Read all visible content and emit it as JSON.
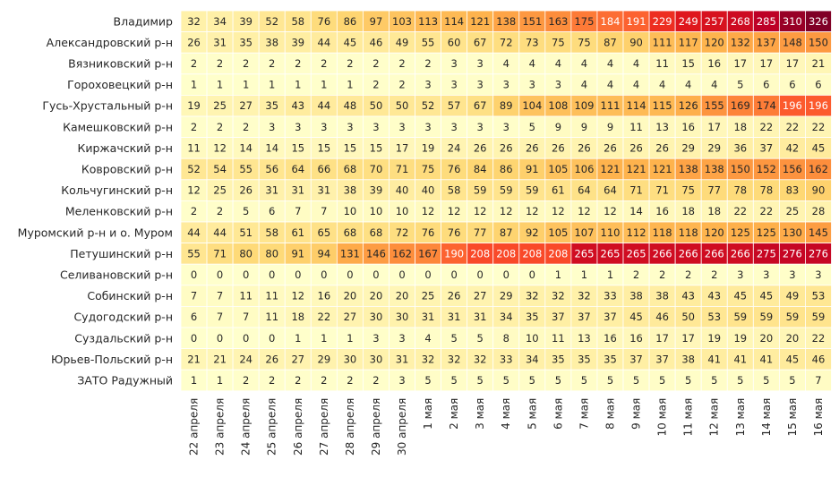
{
  "chart_data": {
    "type": "heatmap",
    "title": "",
    "xlabel": "",
    "ylabel": "",
    "colormap": "YlOrRd",
    "value_range": [
      0,
      326
    ],
    "x": [
      "22 апреля",
      "23 апреля",
      "24 апреля",
      "25 апреля",
      "26 апреля",
      "27 апреля",
      "28 апреля",
      "29 апреля",
      "30 апреля",
      "1 мая",
      "2 мая",
      "3 мая",
      "4 мая",
      "5 мая",
      "6 мая",
      "7 мая",
      "8 мая",
      "9 мая",
      "10 мая",
      "11 мая",
      "12 мая",
      "13 мая",
      "14 мая",
      "15 мая",
      "16 мая"
    ],
    "y": [
      "Владимир",
      "Александровский р-н",
      "Вязниковский р-н",
      "Гороховецкий р-н",
      "Гусь-Хрустальный р-н",
      "Камешковский р-н",
      "Киржачский р-н",
      "Ковровский р-н",
      "Кольчугинский р-н",
      "Меленковский р-н",
      "Муромский р-н и о. Муром",
      "Петушинский р-н",
      "Селивановский р-н",
      "Собинский р-н",
      "Судогодский р-н",
      "Суздальский р-н",
      "Юрьев-Польский р-н",
      "ЗАТО Радужный"
    ],
    "values": [
      [
        32,
        34,
        39,
        52,
        58,
        76,
        86,
        97,
        103,
        113,
        114,
        121,
        138,
        151,
        163,
        175,
        184,
        191,
        229,
        249,
        257,
        268,
        285,
        310,
        326
      ],
      [
        26,
        31,
        35,
        38,
        39,
        44,
        45,
        46,
        49,
        55,
        60,
        67,
        72,
        73,
        75,
        75,
        87,
        90,
        111,
        117,
        120,
        132,
        137,
        148,
        150
      ],
      [
        2,
        2,
        2,
        2,
        2,
        2,
        2,
        2,
        2,
        2,
        3,
        3,
        4,
        4,
        4,
        4,
        4,
        4,
        11,
        15,
        16,
        17,
        17,
        17,
        21
      ],
      [
        1,
        1,
        1,
        1,
        1,
        1,
        1,
        2,
        2,
        3,
        3,
        3,
        3,
        3,
        3,
        4,
        4,
        4,
        4,
        4,
        4,
        5,
        6,
        6,
        6
      ],
      [
        19,
        25,
        27,
        35,
        43,
        44,
        48,
        50,
        50,
        52,
        57,
        67,
        89,
        104,
        108,
        109,
        111,
        114,
        115,
        126,
        155,
        169,
        174,
        196,
        196
      ],
      [
        2,
        2,
        2,
        3,
        3,
        3,
        3,
        3,
        3,
        3,
        3,
        3,
        3,
        5,
        9,
        9,
        9,
        11,
        13,
        16,
        17,
        18,
        22,
        22,
        22
      ],
      [
        11,
        12,
        14,
        14,
        15,
        15,
        15,
        15,
        17,
        19,
        24,
        26,
        26,
        26,
        26,
        26,
        26,
        26,
        26,
        29,
        29,
        36,
        37,
        42,
        45
      ],
      [
        52,
        54,
        55,
        56,
        64,
        66,
        68,
        70,
        71,
        75,
        76,
        84,
        86,
        91,
        105,
        106,
        121,
        121,
        121,
        138,
        138,
        150,
        152,
        156,
        162
      ],
      [
        12,
        25,
        26,
        31,
        31,
        31,
        38,
        39,
        40,
        40,
        58,
        59,
        59,
        59,
        61,
        64,
        64,
        71,
        71,
        75,
        77,
        78,
        78,
        83,
        90
      ],
      [
        2,
        2,
        5,
        6,
        7,
        7,
        10,
        10,
        10,
        12,
        12,
        12,
        12,
        12,
        12,
        12,
        12,
        14,
        16,
        18,
        18,
        22,
        22,
        25,
        28
      ],
      [
        44,
        44,
        51,
        58,
        61,
        65,
        68,
        68,
        72,
        76,
        76,
        77,
        87,
        92,
        105,
        107,
        110,
        112,
        118,
        118,
        120,
        125,
        125,
        130,
        145
      ],
      [
        55,
        71,
        80,
        80,
        91,
        94,
        131,
        146,
        162,
        167,
        190,
        208,
        208,
        208,
        208,
        265,
        265,
        265,
        266,
        266,
        266,
        266,
        275,
        276,
        276
      ],
      [
        0,
        0,
        0,
        0,
        0,
        0,
        0,
        0,
        0,
        0,
        0,
        0,
        0,
        0,
        1,
        1,
        1,
        2,
        2,
        2,
        2,
        3,
        3,
        3,
        3
      ],
      [
        7,
        7,
        11,
        11,
        12,
        16,
        20,
        20,
        20,
        25,
        26,
        27,
        29,
        32,
        32,
        32,
        33,
        38,
        38,
        43,
        43,
        45,
        45,
        49,
        53
      ],
      [
        6,
        7,
        7,
        11,
        18,
        22,
        27,
        30,
        30,
        31,
        31,
        31,
        34,
        35,
        37,
        37,
        37,
        45,
        46,
        50,
        53,
        59,
        59,
        59,
        59
      ],
      [
        0,
        0,
        0,
        0,
        1,
        1,
        1,
        3,
        3,
        4,
        5,
        5,
        8,
        10,
        11,
        13,
        16,
        16,
        17,
        17,
        19,
        19,
        20,
        20,
        22
      ],
      [
        21,
        21,
        24,
        26,
        27,
        29,
        30,
        30,
        31,
        32,
        32,
        32,
        33,
        34,
        35,
        35,
        35,
        37,
        37,
        38,
        41,
        41,
        41,
        45,
        46
      ],
      [
        1,
        1,
        2,
        2,
        2,
        2,
        2,
        2,
        3,
        5,
        5,
        5,
        5,
        5,
        5,
        5,
        5,
        5,
        5,
        5,
        5,
        5,
        5,
        5,
        7
      ]
    ],
    "annotate": true,
    "grid": false,
    "legend": "none"
  }
}
